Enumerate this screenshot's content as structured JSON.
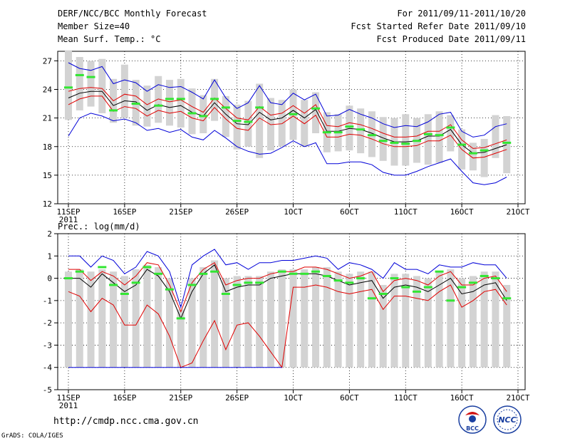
{
  "header": {
    "title": "DERF/NCC/BCC Monthly Forecast",
    "member_size": "Member Size=40",
    "variable1": "Mean Surf. Temp.: °C",
    "period": "For 2011/09/11-2011/10/20",
    "started": "Fcst Started Refer Date 2011/09/10",
    "produced": "Fcst Produced Date 2011/09/11"
  },
  "footer": {
    "url": "http://cmdp.ncc.cma.gov.cn",
    "grads": "GrADS: COLA/IGES",
    "logo1_text": "BCC",
    "logo2_text": "NCC"
  },
  "colors": {
    "box": "#d3d3d3",
    "green": "#32e632",
    "blue": "#0000d8",
    "red": "#e00000",
    "black": "#000000"
  },
  "chart_data": [
    {
      "type": "line",
      "title": "Mean Surf. Temp.: °C",
      "x": [
        1,
        2,
        3,
        4,
        5,
        6,
        7,
        8,
        9,
        10,
        11,
        12,
        13,
        14,
        15,
        16,
        17,
        18,
        19,
        20,
        21,
        22,
        23,
        24,
        25,
        26,
        27,
        28,
        29,
        30,
        31,
        32,
        33,
        34,
        35,
        36,
        37,
        38,
        39,
        40
      ],
      "xtick_labels": [
        "11SEP",
        "16SEP",
        "21SEP",
        "26SEP",
        "1OCT",
        "6OCT",
        "11OCT",
        "16OCT",
        "21OCT"
      ],
      "xtick_positions": [
        1,
        6,
        11,
        16,
        21,
        26,
        31,
        36,
        41
      ],
      "year_label": "2011",
      "ylim": [
        12,
        28
      ],
      "yticks": [
        12,
        15,
        18,
        21,
        24,
        27
      ],
      "series": [
        {
          "name": "mean",
          "color": "black",
          "values": [
            23.1,
            23.6,
            23.8,
            23.8,
            22.3,
            22.8,
            22.7,
            21.8,
            22.4,
            22.1,
            22.3,
            21.6,
            21.2,
            22.6,
            21.4,
            20.4,
            20.3,
            21.6,
            20.8,
            21.0,
            21.8,
            21.0,
            21.9,
            19.6,
            19.6,
            19.9,
            19.8,
            19.4,
            18.9,
            18.5,
            18.5,
            18.6,
            19.1,
            19.1,
            19.8,
            18.2,
            17.3,
            17.4,
            17.8,
            18.2
          ]
        },
        {
          "name": "upper",
          "color": "red",
          "values": [
            23.8,
            24.1,
            24.2,
            24.1,
            22.8,
            23.5,
            23.3,
            22.4,
            23.0,
            22.7,
            22.9,
            22.2,
            21.6,
            23.1,
            22.0,
            21.0,
            20.8,
            22.2,
            21.3,
            21.5,
            22.3,
            21.5,
            22.4,
            20.2,
            20.1,
            20.5,
            20.3,
            19.9,
            19.4,
            19.0,
            19.0,
            19.1,
            19.6,
            19.6,
            20.3,
            18.7,
            17.8,
            17.9,
            18.3,
            18.7
          ]
        },
        {
          "name": "lower",
          "color": "red",
          "values": [
            22.4,
            23.0,
            23.3,
            23.3,
            21.7,
            22.2,
            22.0,
            21.2,
            21.8,
            21.5,
            21.7,
            21.0,
            20.7,
            22.1,
            20.9,
            19.9,
            19.7,
            21.0,
            20.3,
            20.4,
            21.2,
            20.4,
            21.3,
            19.0,
            19.0,
            19.3,
            19.2,
            18.8,
            18.3,
            18.0,
            18.0,
            18.1,
            18.6,
            18.6,
            19.2,
            17.7,
            16.8,
            16.9,
            17.3,
            17.7
          ]
        },
        {
          "name": "max",
          "color": "blue",
          "values": [
            26.8,
            26.2,
            26.0,
            26.4,
            24.6,
            25.0,
            24.7,
            23.8,
            24.5,
            24.2,
            24.3,
            23.7,
            23.0,
            25.0,
            23.1,
            22.0,
            22.6,
            24.4,
            22.6,
            22.4,
            23.6,
            22.9,
            23.5,
            21.2,
            21.3,
            21.9,
            21.4,
            21.0,
            20.4,
            20.0,
            20.2,
            20.1,
            20.6,
            21.4,
            21.6,
            19.6,
            19.0,
            19.2,
            20.1,
            20.4
          ]
        },
        {
          "name": "min",
          "color": "blue",
          "values": [
            19.1,
            21.0,
            21.5,
            21.2,
            20.7,
            20.9,
            20.5,
            19.7,
            19.9,
            19.5,
            19.8,
            19.0,
            18.7,
            19.7,
            18.9,
            18.0,
            17.5,
            17.2,
            17.3,
            17.9,
            18.6,
            18.0,
            18.4,
            16.2,
            16.2,
            16.4,
            16.4,
            16.1,
            15.3,
            15.0,
            15.0,
            15.4,
            15.9,
            16.3,
            16.7,
            15.4,
            14.2,
            14.0,
            14.2,
            14.8
          ]
        },
        {
          "name": "observed",
          "color": "green",
          "values": [
            24.2,
            25.5,
            25.3,
            null,
            21.8,
            null,
            22.5,
            null,
            22.3,
            23.0,
            23.0,
            21.5,
            21.2,
            23.0,
            22.1,
            20.7,
            20.6,
            22.1,
            null,
            null,
            21.4,
            null,
            22.0,
            19.5,
            19.5,
            20.1,
            19.8,
            19.2,
            18.6,
            18.4,
            18.3,
            18.6,
            19.3,
            19.2,
            20.0,
            18.2,
            17.3,
            17.6,
            null,
            18.4
          ]
        }
      ],
      "box_range": {
        "high": [
          28.1,
          27.4,
          27.0,
          27.2,
          25.1,
          26.6,
          25.0,
          24.4,
          25.4,
          25.0,
          25.1,
          24.1,
          23.4,
          25.1,
          23.3,
          22.4,
          22.8,
          24.6,
          23.1,
          22.9,
          24.0,
          22.9,
          23.7,
          21.6,
          21.4,
          22.3,
          22.0,
          21.7,
          21.1,
          21.0,
          21.4,
          21.0,
          21.4,
          21.7,
          21.3,
          19.8,
          18.4,
          18.8,
          21.3,
          21.2
        ],
        "low": [
          20.8,
          21.8,
          22.2,
          21.5,
          20.5,
          21.0,
          20.2,
          20.1,
          20.5,
          20.2,
          20.0,
          19.3,
          19.4,
          20.7,
          19.0,
          17.7,
          18.0,
          16.8,
          17.6,
          18.0,
          18.7,
          18.0,
          19.4,
          17.4,
          17.5,
          17.6,
          17.3,
          16.9,
          16.5,
          16.0,
          16.0,
          16.3,
          16.1,
          16.3,
          17.5,
          15.6,
          15.5,
          14.8,
          16.8,
          15.2
        ]
      }
    },
    {
      "type": "line",
      "title": "Prec.: log(mm/d)",
      "x": [
        1,
        2,
        3,
        4,
        5,
        6,
        7,
        8,
        9,
        10,
        11,
        12,
        13,
        14,
        15,
        16,
        17,
        18,
        19,
        20,
        21,
        22,
        23,
        24,
        25,
        26,
        27,
        28,
        29,
        30,
        31,
        32,
        33,
        34,
        35,
        36,
        37,
        38,
        39,
        40
      ],
      "xtick_labels": [
        "11SEP",
        "16SEP",
        "21SEP",
        "26SEP",
        "1OCT",
        "6OCT",
        "11OCT",
        "16OCT",
        "21OCT"
      ],
      "xtick_positions": [
        1,
        6,
        11,
        16,
        21,
        26,
        31,
        36,
        41
      ],
      "year_label": "2011",
      "ylim": [
        -5,
        2
      ],
      "yticks": [
        -5,
        -4,
        -3,
        -2,
        -1,
        0,
        1,
        2
      ],
      "series": [
        {
          "name": "mean",
          "color": "black",
          "values": [
            0.0,
            0.0,
            -0.4,
            0.2,
            -0.2,
            -0.6,
            -0.3,
            0.4,
            0.1,
            -0.6,
            -1.8,
            -0.6,
            0.2,
            0.6,
            -0.6,
            -0.4,
            -0.3,
            -0.3,
            0.0,
            0.1,
            0.2,
            0.2,
            0.2,
            0.1,
            -0.1,
            -0.3,
            -0.2,
            -0.1,
            -0.9,
            -0.4,
            -0.3,
            -0.4,
            -0.6,
            -0.3,
            0.0,
            -0.7,
            -0.6,
            -0.3,
            -0.2,
            -1.0
          ]
        },
        {
          "name": "upper",
          "color": "red",
          "values": [
            0.4,
            0.4,
            -0.1,
            0.3,
            0.1,
            -0.3,
            0.1,
            0.7,
            0.6,
            -0.3,
            -1.5,
            -0.2,
            0.4,
            0.7,
            -0.3,
            -0.1,
            0.0,
            0.0,
            0.2,
            0.3,
            0.3,
            0.5,
            0.5,
            0.4,
            0.2,
            0.0,
            0.1,
            0.3,
            -0.6,
            -0.1,
            0.0,
            -0.1,
            -0.3,
            0.1,
            0.3,
            -0.3,
            -0.3,
            0.0,
            0.1,
            -0.6
          ]
        },
        {
          "name": "lower",
          "color": "red",
          "values": [
            -0.6,
            -0.8,
            -1.5,
            -0.9,
            -1.2,
            -2.1,
            -2.1,
            -1.2,
            -1.6,
            -2.6,
            -4.0,
            -3.8,
            -2.8,
            -1.9,
            -3.2,
            -2.1,
            -2.0,
            -2.6,
            -3.3,
            -4.0,
            -0.4,
            -0.4,
            -0.3,
            -0.4,
            -0.6,
            -0.7,
            -0.6,
            -0.5,
            -1.4,
            -0.8,
            -0.8,
            -0.9,
            -1.0,
            -0.6,
            -0.3,
            -1.3,
            -1.0,
            -0.6,
            -0.5,
            -1.2
          ]
        },
        {
          "name": "max",
          "color": "blue",
          "values": [
            1.0,
            1.0,
            0.5,
            1.0,
            0.8,
            0.2,
            0.5,
            1.2,
            1.0,
            0.3,
            -1.3,
            0.6,
            1.0,
            1.3,
            0.6,
            0.7,
            0.4,
            0.7,
            0.7,
            0.8,
            0.8,
            0.9,
            1.0,
            0.9,
            0.4,
            0.7,
            0.6,
            0.4,
            0.0,
            0.7,
            0.4,
            0.4,
            0.2,
            0.6,
            0.5,
            0.5,
            0.7,
            0.6,
            0.6,
            0.0
          ]
        },
        {
          "name": "min",
          "color": "blue",
          "values": [
            -4,
            -4,
            -4,
            -4,
            -4,
            -4,
            -4,
            -4,
            -4,
            -4,
            -4,
            -4,
            -4,
            -4,
            -4,
            -4,
            -4,
            -4,
            -4,
            -4,
            null,
            null,
            null,
            null,
            null,
            null,
            null,
            null,
            null,
            null,
            null,
            null,
            null,
            null,
            null,
            null,
            null,
            null,
            null,
            null
          ]
        },
        {
          "name": "observed",
          "color": "green",
          "values": [
            0.0,
            0.3,
            null,
            0.5,
            -0.3,
            -0.7,
            -0.2,
            0.5,
            0.2,
            -0.5,
            -1.8,
            -0.3,
            0.2,
            0.3,
            -0.7,
            -0.3,
            -0.2,
            -0.2,
            null,
            0.3,
            0.2,
            0.2,
            0.3,
            0.1,
            -0.1,
            -0.2,
            0.0,
            -0.9,
            -0.7,
            0.0,
            -0.4,
            -0.6,
            -0.4,
            0.3,
            -1.0,
            -0.4,
            -0.2,
            0.1,
            0.0,
            -0.9
          ]
        }
      ],
      "box_range": {
        "high": [
          0.3,
          0.4,
          0.3,
          0.4,
          0.3,
          0.1,
          0.4,
          0.6,
          0.5,
          0.0,
          -1.4,
          0.0,
          0.5,
          0.8,
          0.0,
          0.1,
          0.1,
          0.1,
          0.3,
          0.4,
          0.4,
          0.4,
          0.5,
          0.5,
          0.3,
          0.2,
          0.3,
          0.3,
          -0.3,
          0.2,
          0.2,
          0.1,
          0.0,
          0.3,
          0.4,
          0.0,
          0.1,
          0.3,
          0.3,
          -0.3
        ],
        "low": [
          -4,
          -4,
          -4,
          -4,
          -4,
          -4,
          -4,
          -4,
          -4,
          -4,
          -4,
          -4,
          -4,
          -4,
          -4,
          -4,
          -4,
          -4,
          -4,
          -4,
          -4,
          -4,
          -4,
          -4,
          -4,
          -4,
          -4,
          -4,
          -4,
          -4,
          -4,
          -4,
          -4,
          -4,
          -4,
          -4,
          -4,
          -4,
          -4,
          -4
        ]
      }
    }
  ]
}
